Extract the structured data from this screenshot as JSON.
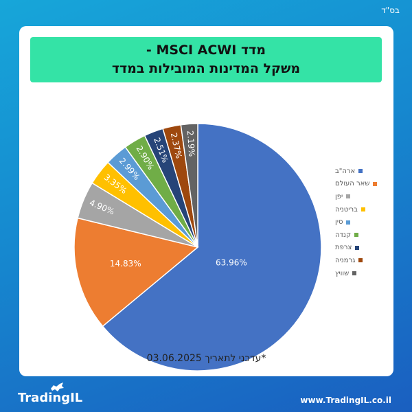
{
  "header": {
    "bsd": "בס\"ד"
  },
  "title_box": {
    "line1": "מדד MSCI ACWI -",
    "line2": "משקל המדינות המובילות במדד"
  },
  "footnote": "*עדכני לתאריך 03.06.2025",
  "brand": {
    "logo_text": "TradingIL",
    "website": "www.TradingIL.co.il"
  },
  "chart_data": {
    "type": "pie",
    "slices": [
      {
        "label": "ארה\"ב",
        "value": 63.96,
        "value_label": "63.96%",
        "color": "#4472c4"
      },
      {
        "label": "שאר העולם",
        "value": 14.83,
        "value_label": "14.83%",
        "color": "#ed7d31"
      },
      {
        "label": "יפן",
        "value": 4.9,
        "value_label": "4.90%",
        "color": "#a5a5a5"
      },
      {
        "label": "בריטניה",
        "value": 3.35,
        "value_label": "3.35%",
        "color": "#ffc000"
      },
      {
        "label": "סין",
        "value": 2.99,
        "value_label": "2.99%",
        "color": "#5b9bd5"
      },
      {
        "label": "קנדה",
        "value": 2.9,
        "value_label": "2.90%",
        "color": "#70ad47"
      },
      {
        "label": "צרפת",
        "value": 2.51,
        "value_label": "2.51%",
        "color": "#264478"
      },
      {
        "label": "גרמניה",
        "value": 2.37,
        "value_label": "2.37%",
        "color": "#9e480e"
      },
      {
        "label": "שוויץ",
        "value": 2.19,
        "value_label": "2.19%",
        "color": "#636363"
      }
    ],
    "legend_position": "right"
  }
}
